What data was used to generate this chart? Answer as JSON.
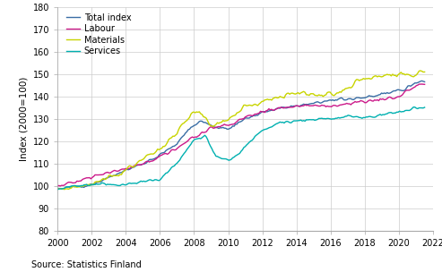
{
  "ylabel": "Index (2000=100)",
  "source": "Source: Statistics Finland",
  "ylim": [
    80,
    180
  ],
  "yticks": [
    80,
    90,
    100,
    110,
    120,
    130,
    140,
    150,
    160,
    170,
    180
  ],
  "xlim": [
    2000,
    2022
  ],
  "xticks": [
    2000,
    2002,
    2004,
    2006,
    2008,
    2010,
    2012,
    2014,
    2016,
    2018,
    2020,
    2022
  ],
  "series": {
    "Total index": {
      "color": "#3a6ea5",
      "linewidth": 1.0
    },
    "Labour": {
      "color": "#cc1a8a",
      "linewidth": 1.0
    },
    "Materials": {
      "color": "#c8d400",
      "linewidth": 1.0
    },
    "Services": {
      "color": "#00b0b0",
      "linewidth": 1.0
    }
  },
  "background_color": "#ffffff",
  "grid_color": "#cccccc",
  "total_knots_x": [
    2000,
    2001,
    2002,
    2003,
    2004,
    2005,
    2006,
    2007,
    2008,
    2008.5,
    2009,
    2009.5,
    2010,
    2011,
    2012,
    2013,
    2014,
    2015,
    2016,
    2017,
    2018,
    2019,
    2020,
    2021,
    2021.5
  ],
  "total_knots_y": [
    99,
    100,
    101,
    104,
    107,
    110,
    114,
    119,
    128,
    129,
    127,
    126,
    126,
    130,
    133,
    135,
    136,
    137,
    138,
    139,
    140,
    141,
    143,
    146,
    147
  ],
  "labour_knots_x": [
    2000,
    2001,
    2002,
    2003,
    2004,
    2005,
    2006,
    2007,
    2008,
    2008.5,
    2009,
    2009.5,
    2010,
    2011,
    2012,
    2013,
    2014,
    2015,
    2016,
    2017,
    2018,
    2019,
    2020,
    2021,
    2021.5
  ],
  "labour_knots_y": [
    100,
    102,
    104,
    106,
    108,
    110,
    113,
    117,
    122,
    124,
    126,
    127,
    127,
    131,
    133,
    135,
    136,
    136,
    136,
    137,
    138,
    139,
    140,
    145,
    146
  ],
  "materials_knots_x": [
    2000,
    2001,
    2002,
    2003,
    2004,
    2005,
    2006,
    2007,
    2008,
    2008.5,
    2009,
    2009.5,
    2010,
    2011,
    2012,
    2013,
    2014,
    2015,
    2016,
    2017,
    2018,
    2019,
    2020,
    2021,
    2021.5
  ],
  "materials_knots_y": [
    99,
    100,
    101,
    104,
    107,
    112,
    117,
    124,
    133,
    132,
    127,
    128,
    130,
    135,
    138,
    140,
    141,
    141,
    141,
    144,
    148,
    149,
    150,
    150,
    152
  ],
  "services_knots_x": [
    2000,
    2001,
    2002,
    2003,
    2004,
    2005,
    2006,
    2007,
    2008,
    2008.7,
    2009.0,
    2009.3,
    2009.8,
    2010.2,
    2010.7,
    2011,
    2012,
    2013,
    2014,
    2015,
    2016,
    2017,
    2018,
    2019,
    2020,
    2021,
    2021.5
  ],
  "services_knots_y": [
    99,
    100,
    101,
    101,
    101,
    102,
    103,
    110,
    121,
    122,
    117,
    113,
    112,
    112,
    115,
    118,
    125,
    128,
    129,
    130,
    130,
    131,
    131,
    132,
    133,
    135,
    135
  ]
}
